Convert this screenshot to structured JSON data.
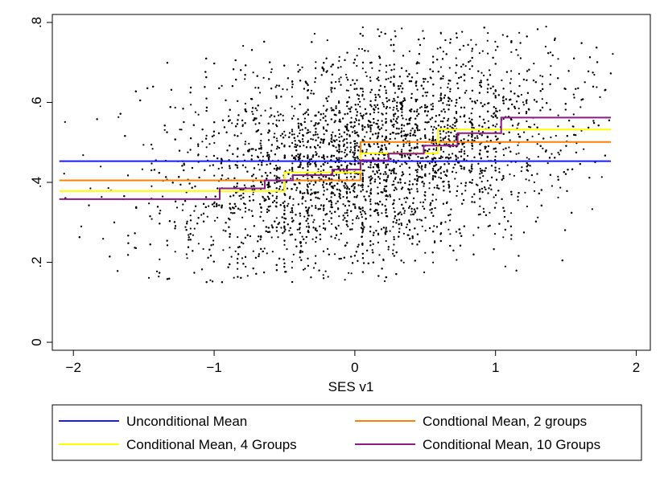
{
  "chart_data": {
    "type": "scatter",
    "xlabel": "SES v1",
    "ylabel": "",
    "xlim": [
      -2.15,
      2.1
    ],
    "ylim": [
      -0.02,
      0.82
    ],
    "x_ticks": [
      -2,
      -1,
      0,
      1,
      2
    ],
    "x_tick_labels": [
      "−2",
      "−1",
      "0",
      "1",
      "2"
    ],
    "y_ticks": [
      0,
      0.2,
      0.4,
      0.6,
      0.8
    ],
    "y_tick_labels": [
      "0",
      ".2",
      ".4",
      ".6",
      ".8"
    ],
    "grid": false,
    "legend_position": "bottom",
    "scatter": {
      "color": "#000000",
      "x_range": [
        -2.1,
        1.82
      ],
      "y_range": [
        0.15,
        0.79
      ],
      "trend": "positive"
    },
    "series": [
      {
        "name": "Unconditional Mean",
        "color": "#1a1aff",
        "steps": [
          {
            "x0": -2.1,
            "x1": 1.82,
            "y": 0.453
          }
        ]
      },
      {
        "name": "Condtional Mean, 2 groups",
        "color": "#ff8000",
        "steps": [
          {
            "x0": -2.1,
            "x1": 0.04,
            "y": 0.405
          },
          {
            "x0": 0.04,
            "x1": 1.82,
            "y": 0.501
          }
        ]
      },
      {
        "name": "Conditional Mean, 4 Groups",
        "color": "#ffff00",
        "steps": [
          {
            "x0": -2.1,
            "x1": -0.5,
            "y": 0.378
          },
          {
            "x0": -0.5,
            "x1": 0.04,
            "y": 0.425
          },
          {
            "x0": 0.04,
            "x1": 0.59,
            "y": 0.473
          },
          {
            "x0": 0.59,
            "x1": 1.82,
            "y": 0.532
          }
        ]
      },
      {
        "name": "Conditional Mean, 10 Groups",
        "color": "#8b1a89",
        "steps": [
          {
            "x0": -2.1,
            "x1": -0.96,
            "y": 0.358
          },
          {
            "x0": -0.96,
            "x1": -0.64,
            "y": 0.385
          },
          {
            "x0": -0.64,
            "x1": -0.44,
            "y": 0.405
          },
          {
            "x0": -0.44,
            "x1": -0.16,
            "y": 0.418
          },
          {
            "x0": -0.16,
            "x1": 0.04,
            "y": 0.432
          },
          {
            "x0": 0.04,
            "x1": 0.24,
            "y": 0.455
          },
          {
            "x0": 0.24,
            "x1": 0.49,
            "y": 0.472
          },
          {
            "x0": 0.49,
            "x1": 0.73,
            "y": 0.492
          },
          {
            "x0": 0.73,
            "x1": 1.04,
            "y": 0.523
          },
          {
            "x0": 1.04,
            "x1": 1.82,
            "y": 0.562
          }
        ]
      }
    ]
  }
}
